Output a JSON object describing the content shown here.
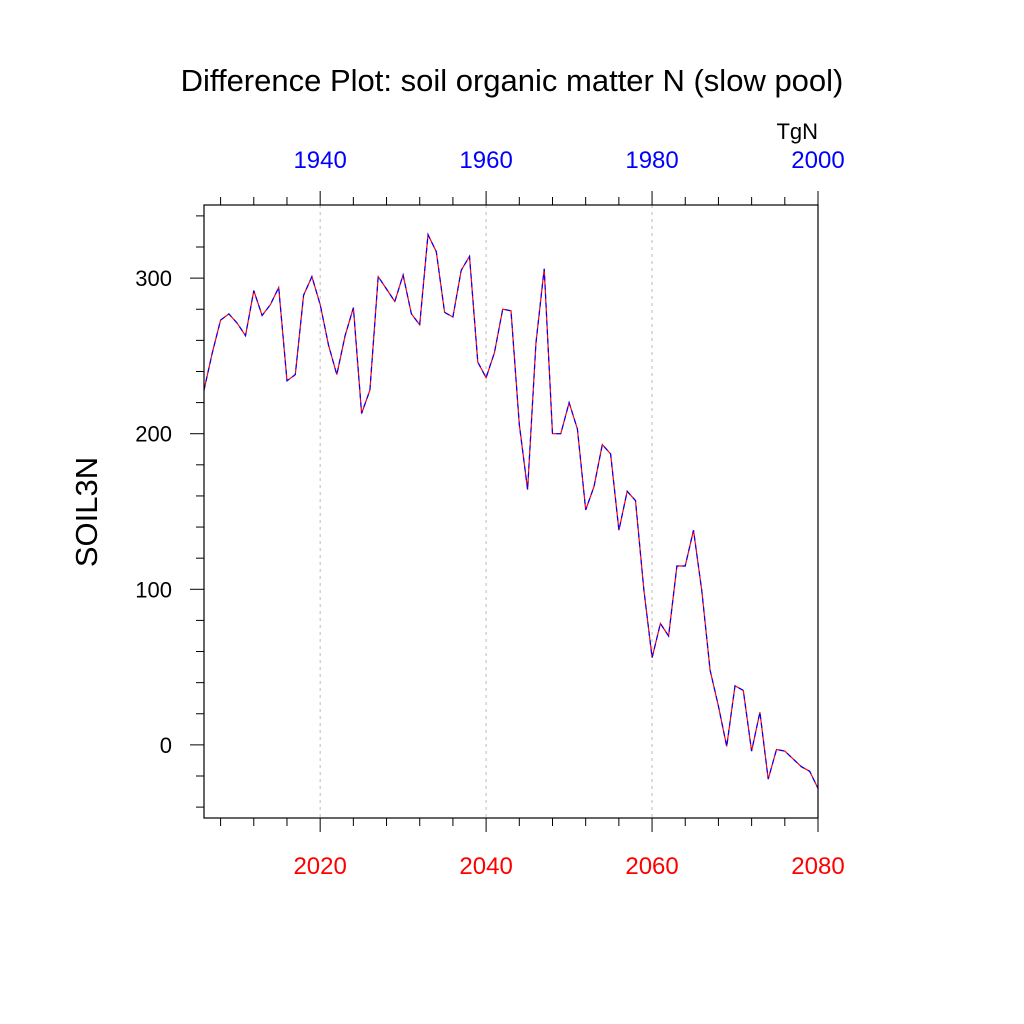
{
  "chart_data": {
    "type": "line",
    "title": "Difference Plot: soil organic matter N (slow pool)",
    "ylabel": "SOIL3N",
    "units": "TgN",
    "xlim": [
      2006,
      2080
    ],
    "ylim": [
      -47,
      347
    ],
    "yticks": [
      0,
      100,
      200,
      300
    ],
    "bottom_axis": {
      "ticks": [
        2020,
        2040,
        2060,
        2080
      ],
      "color": "#ff0000"
    },
    "top_axis": {
      "ticks": [
        1940,
        1960,
        1980,
        2000
      ],
      "offset_years": -80,
      "color": "#0000ff"
    },
    "grid": "dashed vertical lines at 2020, 2040, 2060",
    "series": [
      {
        "color_a": "#ff0000",
        "color_b": "#0000ff",
        "x": [
          2006,
          2007,
          2008,
          2009,
          2010,
          2011,
          2012,
          2013,
          2014,
          2015,
          2016,
          2017,
          2018,
          2019,
          2020,
          2021,
          2022,
          2023,
          2024,
          2025,
          2026,
          2027,
          2028,
          2029,
          2030,
          2031,
          2032,
          2033,
          2034,
          2035,
          2036,
          2037,
          2038,
          2039,
          2040,
          2041,
          2042,
          2043,
          2044,
          2045,
          2046,
          2047,
          2048,
          2049,
          2050,
          2051,
          2052,
          2053,
          2054,
          2055,
          2056,
          2057,
          2058,
          2059,
          2060,
          2061,
          2062,
          2063,
          2064,
          2065,
          2066,
          2067,
          2068,
          2069,
          2070,
          2071,
          2072,
          2073,
          2074,
          2075,
          2076,
          2077,
          2078,
          2079,
          2080
        ],
        "values": [
          228,
          252,
          273,
          277,
          271,
          263,
          292,
          276,
          283,
          294,
          234,
          238,
          289,
          301,
          283,
          257,
          238,
          263,
          281,
          213,
          228,
          301,
          293,
          285,
          302,
          277,
          270,
          328,
          317,
          278,
          275,
          305,
          314,
          246,
          236,
          252,
          280,
          279,
          206,
          164,
          258,
          306,
          200,
          200,
          220,
          203,
          151,
          166,
          193,
          187,
          138,
          163,
          157,
          100,
          56,
          78,
          70,
          115,
          115,
          138,
          99,
          48,
          25,
          -1,
          38,
          35,
          -4,
          21,
          -22,
          -3,
          -4,
          -9,
          -14,
          -17,
          -28
        ]
      }
    ]
  }
}
